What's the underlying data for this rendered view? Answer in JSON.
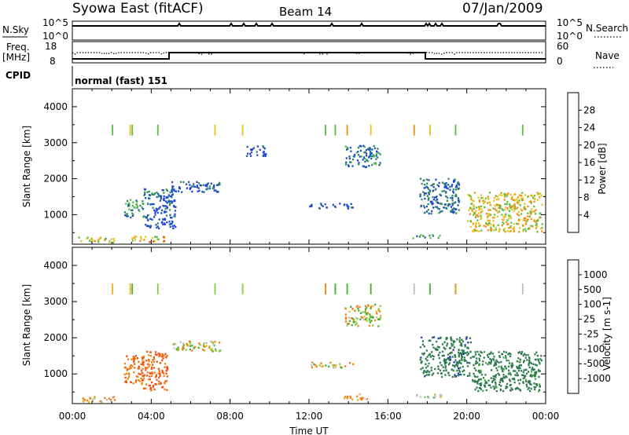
{
  "header": {
    "title": "Syowa East (fitACF)",
    "beam": "Beam 14",
    "date": "07/Jan/2009"
  },
  "summary": {
    "nsky_label": "N.Sky",
    "nsky_ticks": [
      "10^5",
      "10^0"
    ],
    "nsearch_label": "N.Search",
    "nsearch_ticks": [
      "10^5",
      "10^0"
    ],
    "freq_label": [
      "Freq.",
      "[MHz]"
    ],
    "freq_ticks": [
      "18",
      "8"
    ],
    "nave_label": "Nave",
    "nave_ticks": [
      "60",
      "0"
    ],
    "cpid_label": "CPID",
    "cpid_text": "normal (fast) 151"
  },
  "chart_data": [
    {
      "type": "heatmap",
      "name": "Power",
      "ylabel": "Slant Range [km]",
      "yticks": [
        "1000",
        "2000",
        "3000",
        "4000"
      ],
      "ylim": [
        180,
        4500
      ],
      "xlim": [
        0,
        24
      ],
      "colorbar_label": "Power [dB]",
      "colorbar_ticks": [
        "4",
        "8",
        "12",
        "16",
        "20",
        "24",
        "28"
      ],
      "colorbar_colors": [
        "#2040e0",
        "#1d54b8",
        "#2e8a5a",
        "#58c040",
        "#e8c020",
        "#f09010",
        "#e05010",
        "#d81010"
      ],
      "regions": [
        {
          "t0": 0.3,
          "t1": 2.2,
          "r0": 200,
          "r1": 360,
          "v": 16
        },
        {
          "t0": 3.0,
          "t1": 4.8,
          "r0": 220,
          "r1": 380,
          "v": 20
        },
        {
          "t0": 2.6,
          "t1": 3.6,
          "r0": 900,
          "r1": 1400,
          "v": 10
        },
        {
          "t0": 3.6,
          "t1": 5.2,
          "r0": 600,
          "r1": 1700,
          "v": 6
        },
        {
          "t0": 5.0,
          "t1": 7.5,
          "r0": 1600,
          "r1": 1900,
          "v": 5
        },
        {
          "t0": 8.8,
          "t1": 9.8,
          "r0": 2600,
          "r1": 2900,
          "v": 5
        },
        {
          "t0": 13.8,
          "t1": 15.6,
          "r0": 2300,
          "r1": 2900,
          "v": 8
        },
        {
          "t0": 12.0,
          "t1": 14.2,
          "r0": 1150,
          "r1": 1300,
          "v": 5
        },
        {
          "t0": 17.6,
          "t1": 19.6,
          "r0": 1000,
          "r1": 2000,
          "v": 7
        },
        {
          "t0": 20.0,
          "t1": 23.8,
          "r0": 500,
          "r1": 1600,
          "v": 18
        },
        {
          "t0": 17.2,
          "t1": 18.8,
          "r0": 320,
          "r1": 420,
          "v": 11
        }
      ]
    },
    {
      "type": "heatmap",
      "name": "Velocity",
      "xlabel": "Time UT",
      "ylabel": "Slant Range [km]",
      "yticks": [
        "1000",
        "2000",
        "3000",
        "4000"
      ],
      "xticks": [
        "00:00",
        "04:00",
        "08:00",
        "12:00",
        "16:00",
        "20:00",
        "00:00"
      ],
      "ylim": [
        180,
        4500
      ],
      "xlim": [
        0,
        24
      ],
      "colorbar_label": "Velocity [m s-1]",
      "colorbar_ticks": [
        "1000",
        "500",
        "100",
        "25",
        "-25",
        "-100",
        "-500",
        "-1000"
      ],
      "colorbar_colors": [
        "#1a3ab8",
        "#2e7a4e",
        "#46b030",
        "#80d040",
        "#c0c0c0",
        "#f0b020",
        "#f08010",
        "#f05010",
        "#e01010"
      ],
      "regions": [
        {
          "t0": 0.3,
          "t1": 2.2,
          "r0": 200,
          "r1": 360,
          "v": -120
        },
        {
          "t0": 2.6,
          "t1": 3.6,
          "r0": 700,
          "r1": 1500,
          "v": -400
        },
        {
          "t0": 3.5,
          "t1": 4.8,
          "r0": 500,
          "r1": 1600,
          "v": -600
        },
        {
          "t0": 5.0,
          "t1": 7.5,
          "r0": 1600,
          "r1": 1900,
          "v": 0
        },
        {
          "t0": 13.8,
          "t1": 15.6,
          "r0": 2300,
          "r1": 2900,
          "v": 0
        },
        {
          "t0": 12.0,
          "t1": 14.2,
          "r0": 1150,
          "r1": 1300,
          "v": 0
        },
        {
          "t0": 17.6,
          "t1": 20.2,
          "r0": 900,
          "r1": 2000,
          "v": 800
        },
        {
          "t0": 20.2,
          "t1": 23.8,
          "r0": 500,
          "r1": 1600,
          "v": 700
        },
        {
          "t0": 13.6,
          "t1": 15.0,
          "r0": 260,
          "r1": 420,
          "v": -200
        },
        {
          "t0": 17.2,
          "t1": 18.8,
          "r0": 320,
          "r1": 420,
          "v": 150
        }
      ]
    }
  ]
}
